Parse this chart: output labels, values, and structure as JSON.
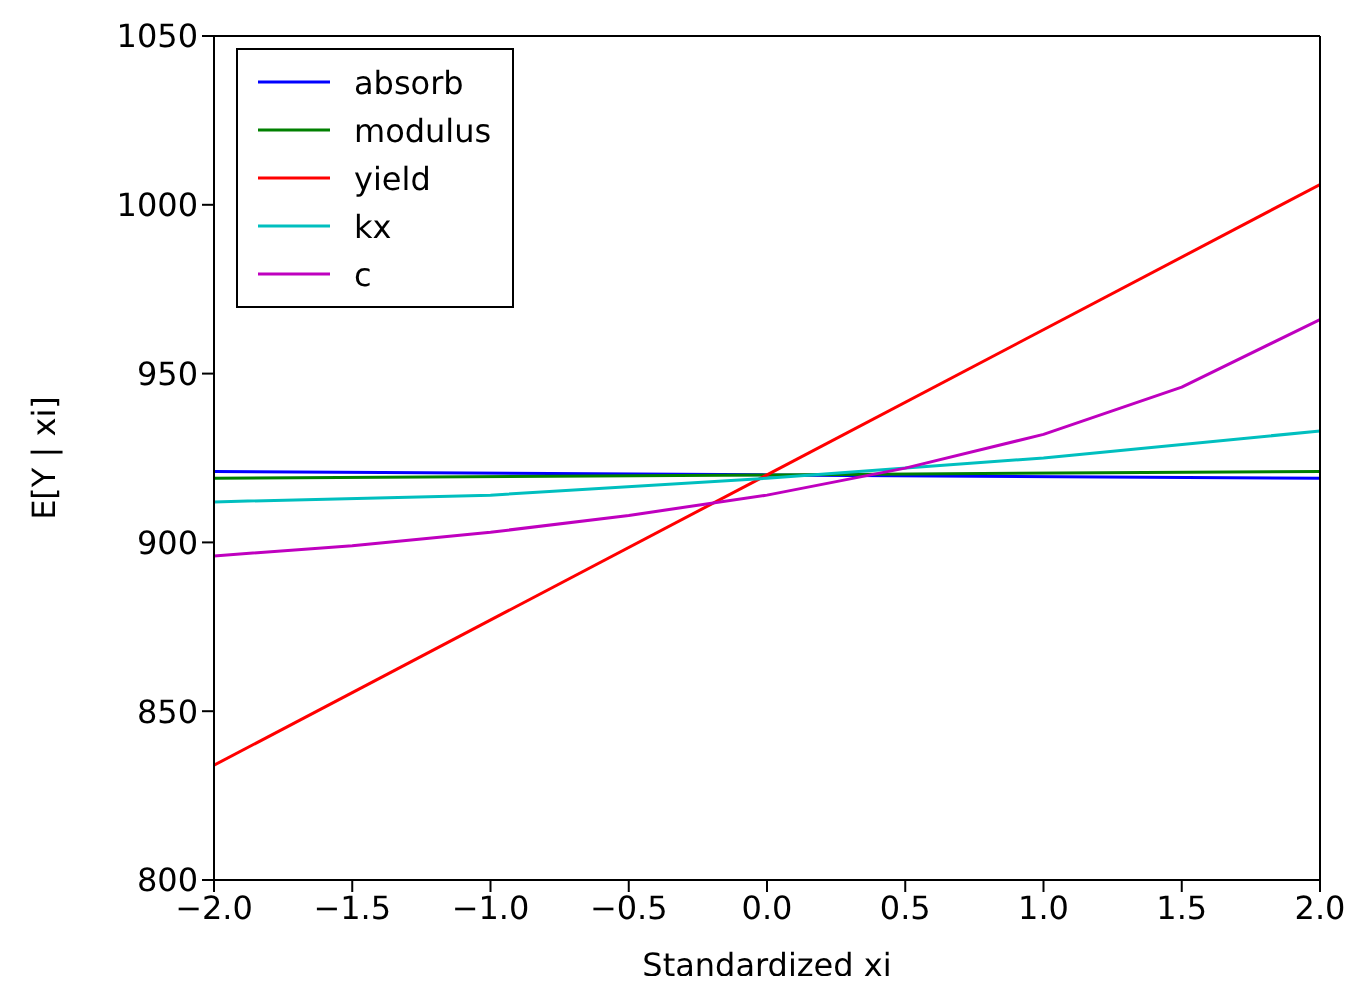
{
  "chart_data": {
    "type": "line",
    "xlabel": "Standardized xi",
    "ylabel": "E[Y | xi]",
    "xlim": [
      -2,
      2
    ],
    "xticks": [
      {
        "value": -2,
        "label": "−2.0"
      },
      {
        "value": -1.5,
        "label": "−1.5"
      },
      {
        "value": -1,
        "label": "−1.0"
      },
      {
        "value": -0.5,
        "label": "−0.5"
      },
      {
        "value": 0,
        "label": "0.0"
      },
      {
        "value": 0.5,
        "label": "0.5"
      },
      {
        "value": 1,
        "label": "1.0"
      },
      {
        "value": 1.5,
        "label": "1.5"
      },
      {
        "value": 2,
        "label": "2.0"
      }
    ],
    "ylim": [
      800,
      1050
    ],
    "yticks": [
      800,
      850,
      900,
      950,
      1000,
      1050
    ],
    "grid": false,
    "legend": "top left",
    "marker": "none",
    "line_style": "solid",
    "series": [
      {
        "name": "absorb",
        "color": "#0000ff",
        "x": [
          -2,
          0,
          2
        ],
        "values": [
          921,
          920,
          919
        ]
      },
      {
        "name": "modulus",
        "color": "#008000",
        "x": [
          -2,
          0,
          2
        ],
        "values": [
          919,
          920,
          921
        ]
      },
      {
        "name": "yield",
        "color": "#ff0000",
        "x": [
          -2,
          2
        ],
        "values": [
          834,
          1006
        ]
      },
      {
        "name": "kx",
        "color": "#00bfbf",
        "x": [
          -2,
          -1,
          0,
          1,
          2
        ],
        "values": [
          912,
          914,
          919,
          925,
          933
        ]
      },
      {
        "name": "c",
        "color": "#bf00bf",
        "x": [
          -2,
          -1.5,
          -1,
          -0.5,
          0,
          0.5,
          1,
          1.5,
          2
        ],
        "values": [
          896,
          899,
          903,
          908,
          914,
          922,
          932,
          946,
          966
        ]
      }
    ]
  }
}
